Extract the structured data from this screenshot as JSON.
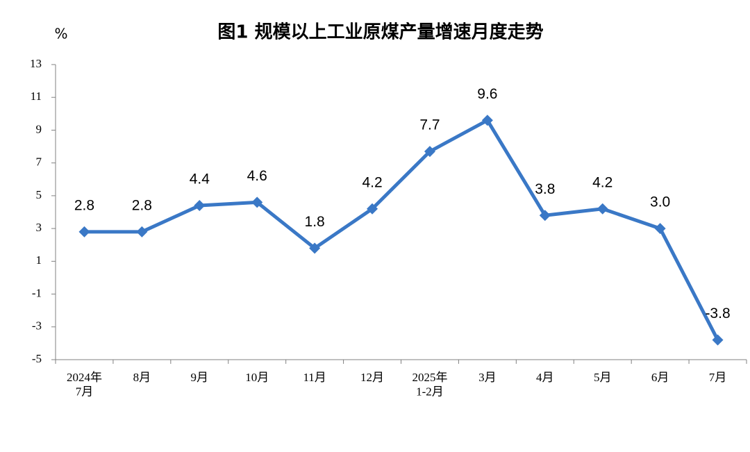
{
  "chart_data": {
    "type": "line",
    "title": "图1  规模以上工业原煤产量增速月度走势",
    "y_label": "%",
    "categories": [
      "2024年\n7月",
      "8月",
      "9月",
      "10月",
      "11月",
      "12月",
      "2025年\n1-2月",
      "3月",
      "4月",
      "5月",
      "6月",
      "7月"
    ],
    "series": [
      {
        "name": "原煤产量增速",
        "color": "#3a78c6",
        "values": [
          2.8,
          2.8,
          4.4,
          4.6,
          1.8,
          4.2,
          7.7,
          9.6,
          3.8,
          4.2,
          3.0,
          -3.8
        ],
        "value_labels": [
          "2.8",
          "2.8",
          "4.4",
          "4.6",
          "1.8",
          "4.2",
          "7.7",
          "9.6",
          "3.8",
          "4.2",
          "3.0",
          "-3.8"
        ]
      }
    ],
    "ylim": [
      -5,
      13
    ],
    "yticks": [
      -5,
      -3,
      -1,
      1,
      3,
      5,
      7,
      9,
      11,
      13
    ],
    "grid": false
  }
}
